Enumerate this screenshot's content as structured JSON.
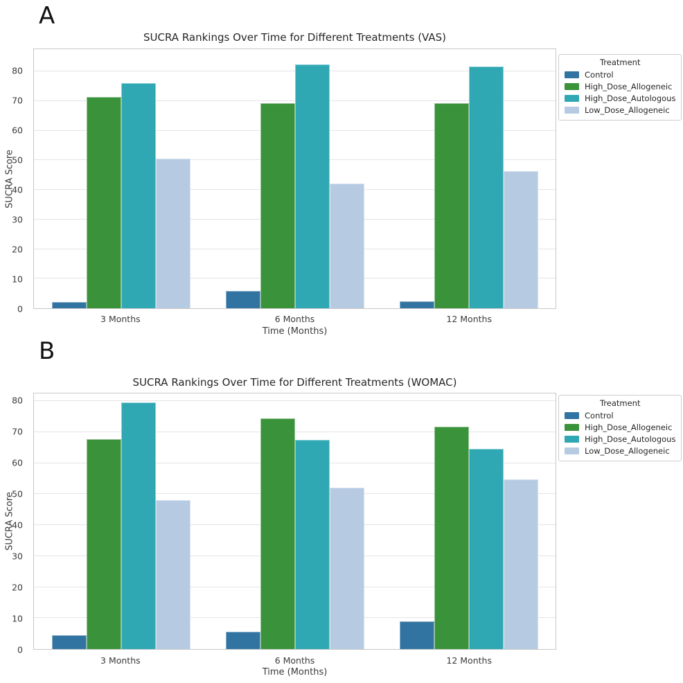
{
  "figure": {
    "background": "#ffffff",
    "text_color": "#262626",
    "grid_color": "#e4e4e4",
    "spine_color": "#c8c8c8"
  },
  "chart_data": [
    {
      "type": "bar",
      "panel_label": "A",
      "title": "SUCRA Rankings Over Time for Different Treatments (VAS)",
      "xlabel": "Time (Months)",
      "ylabel": "SUCRA Score",
      "categories": [
        "3 Months",
        "6 Months",
        "12 Months"
      ],
      "series": [
        {
          "name": "Control",
          "color": "#3274a1",
          "values": [
            2.0,
            5.9,
            2.4
          ]
        },
        {
          "name": "High_Dose_Allogeneic",
          "color": "#3a923a",
          "values": [
            71.3,
            69.3,
            69.3
          ]
        },
        {
          "name": "High_Dose_Autologous",
          "color": "#2fa8b3",
          "values": [
            76.0,
            82.3,
            81.7
          ]
        },
        {
          "name": "Low_Dose_Allogeneic",
          "color": "#b6cbe2",
          "values": [
            50.5,
            42.2,
            46.4
          ]
        }
      ],
      "yticks": [
        0,
        10,
        20,
        30,
        40,
        50,
        60,
        70,
        80
      ],
      "ylim": [
        0,
        87.5
      ],
      "grid": true,
      "legend_title": "Treatment",
      "legend_position": "outside upper right"
    },
    {
      "type": "bar",
      "panel_label": "B",
      "title": "SUCRA Rankings Over Time for Different Treatments (WOMAC)",
      "xlabel": "Time (Months)",
      "ylabel": "SUCRA Score",
      "categories": [
        "3 Months",
        "6 Months",
        "12 Months"
      ],
      "series": [
        {
          "name": "Control",
          "color": "#3274a1",
          "values": [
            4.4,
            5.6,
            9.0
          ]
        },
        {
          "name": "High_Dose_Allogeneic",
          "color": "#3a923a",
          "values": [
            67.7,
            74.5,
            71.7
          ]
        },
        {
          "name": "High_Dose_Autologous",
          "color": "#2fa8b3",
          "values": [
            79.7,
            67.6,
            64.6
          ]
        },
        {
          "name": "Low_Dose_Allogeneic",
          "color": "#b6cbe2",
          "values": [
            48.0,
            52.0,
            54.7
          ]
        }
      ],
      "yticks": [
        0,
        10,
        20,
        30,
        40,
        50,
        60,
        70,
        80
      ],
      "ylim": [
        0,
        82.5
      ],
      "grid": true,
      "legend_title": "Treatment",
      "legend_position": "outside upper right"
    }
  ]
}
